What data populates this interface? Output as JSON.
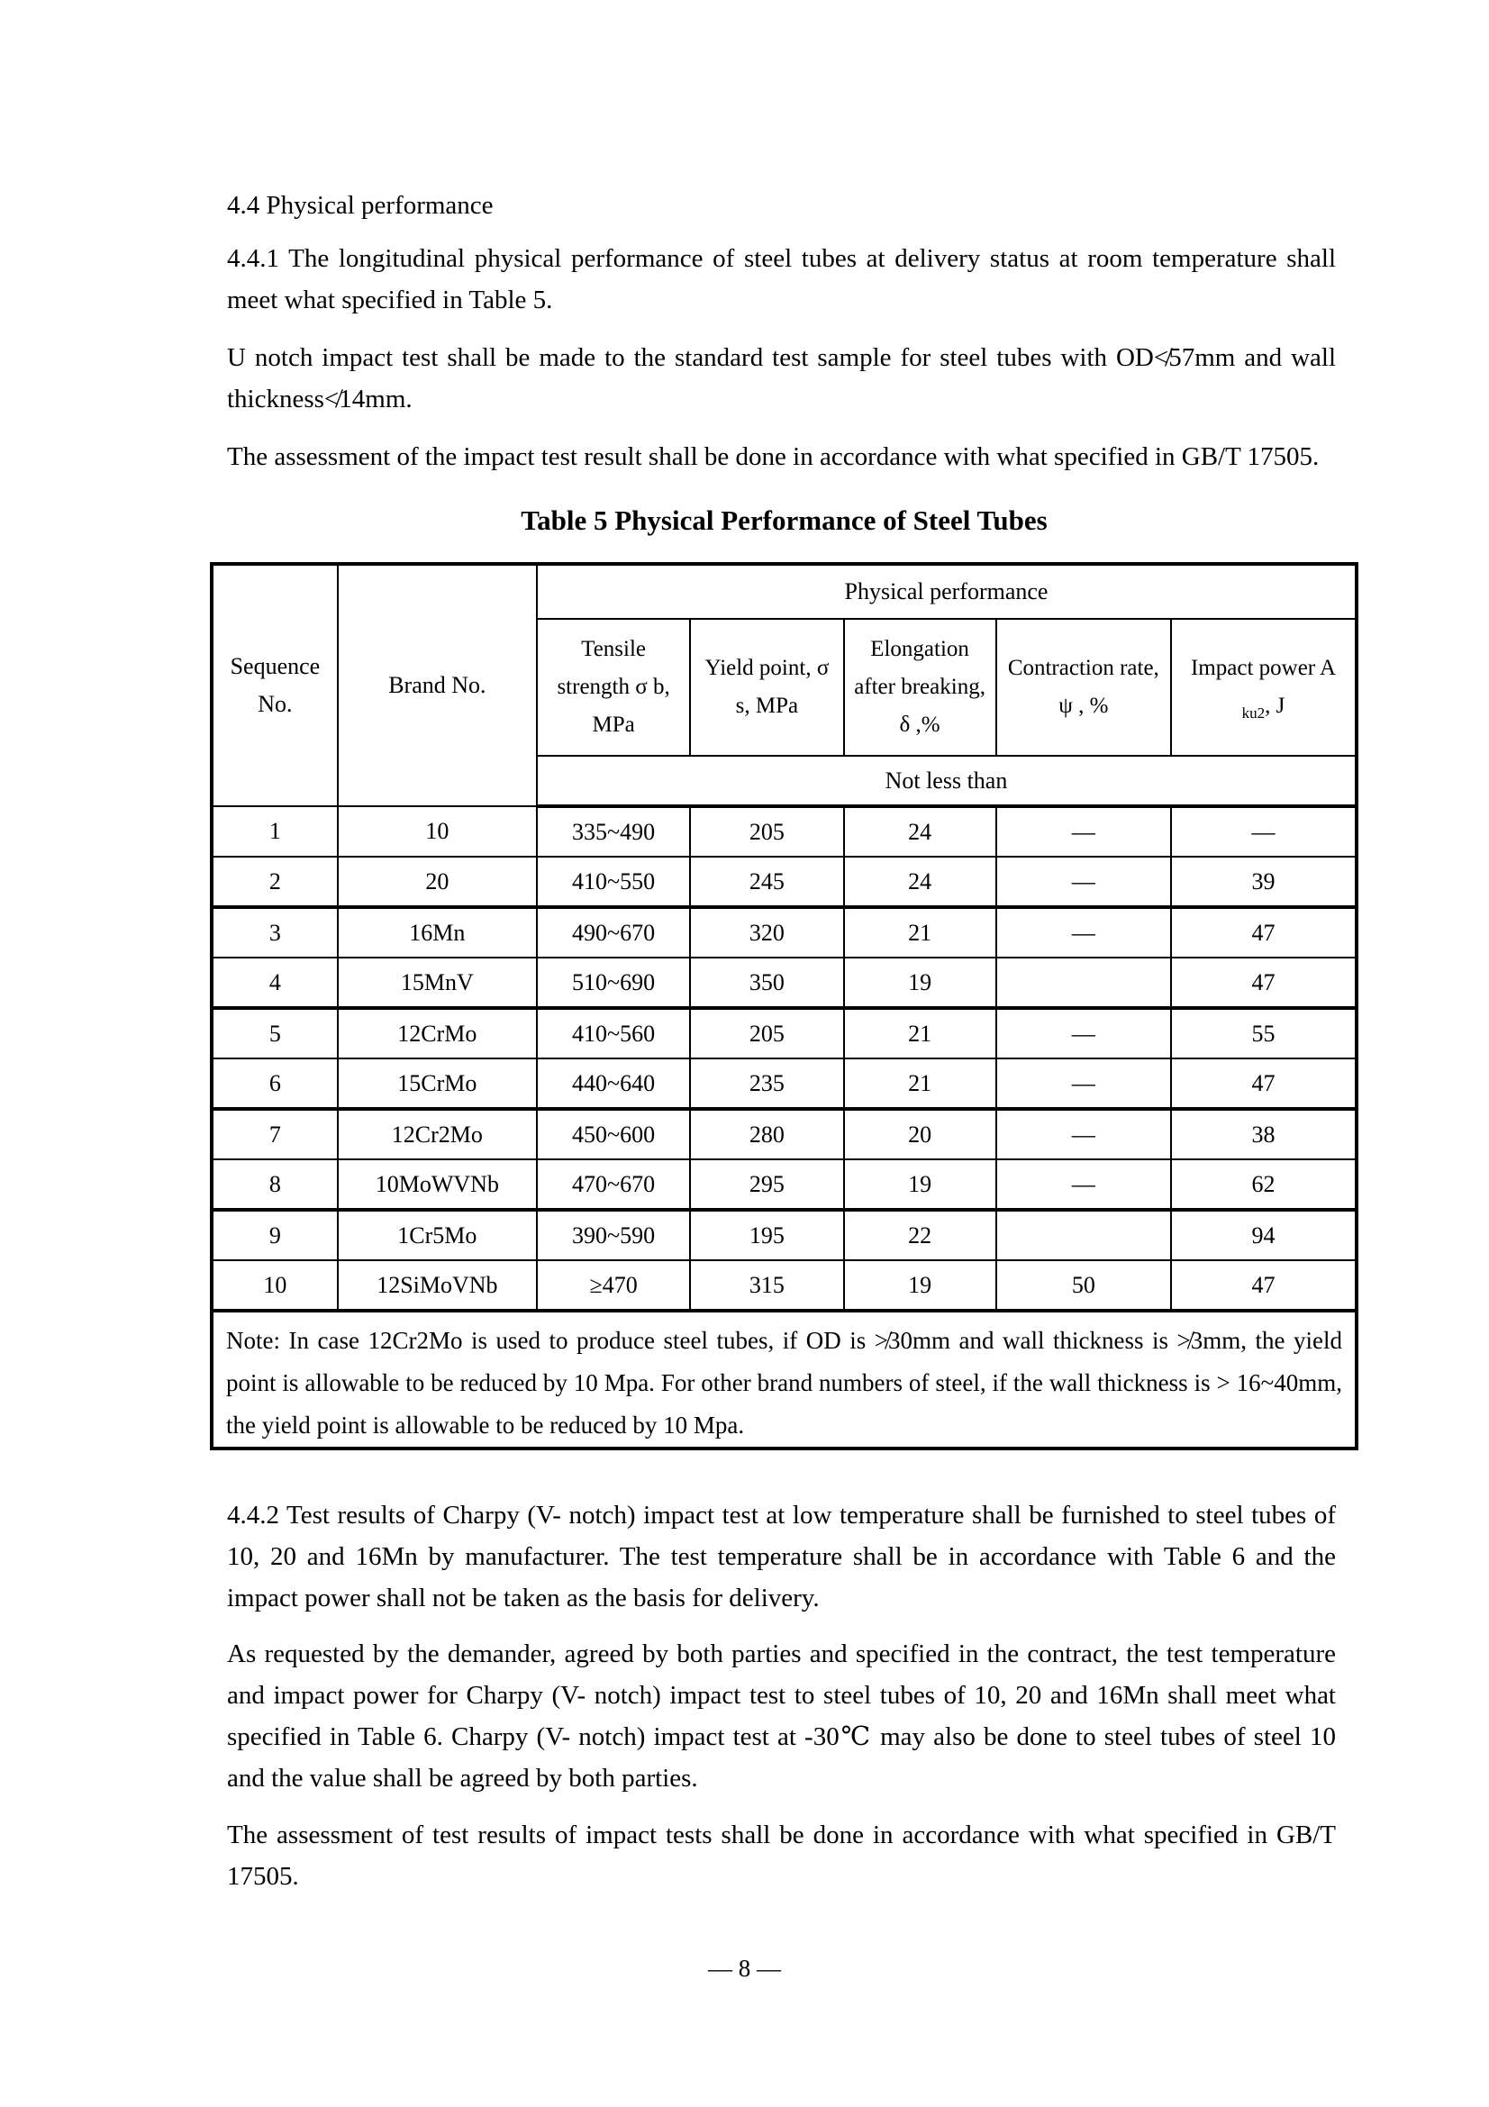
{
  "document": {
    "section_heading": "4.4  Physical performance",
    "paragraphs": {
      "p441": "4.4.1 The longitudinal physical performance of steel tubes at delivery status at room temperature shall meet what specified in Table 5.",
      "p_u_notch": "U notch impact test shall be made to the standard test sample for steel tubes with OD≮57mm and wall thickness≮14mm.",
      "p_assessment1": "The assessment of the impact test result shall be done in accordance with what specified in GB/T 17505.",
      "p442": "4.4.2  Test results of Charpy (V- notch) impact test at low temperature shall be furnished to steel tubes of 10, 20 and 16Mn by manufacturer. The test temperature shall be in accordance with Table 6 and the impact power shall not be taken as the basis for delivery.",
      "p_as_requested": "As requested by the demander, agreed by both parties and specified in the contract, the test temperature and impact power for Charpy (V- notch) impact test to steel tubes of 10, 20 and 16Mn shall meet what specified in Table 6. Charpy (V- notch) impact test at -30℃ may also be done to steel tubes of steel 10 and the value shall be agreed by both parties.",
      "p_assessment2": "The assessment of test results of impact tests shall be done in accordance with what specified in GB/T 17505."
    },
    "table_title": "Table 5    Physical Performance of Steel Tubes",
    "page_number": "— 8 —"
  },
  "table": {
    "header": {
      "sequence_no": "Sequence No.",
      "brand_no": "Brand No.",
      "group": "Physical performance",
      "tensile": "Tensile strength σ b, MPa",
      "yield": "Yield point, σ s, MPa",
      "elongation": "Elongation after breaking, δ ,%",
      "contraction": "Contraction rate, ψ , %",
      "impact_line1": "Impact power A",
      "impact_sub": "ku2",
      "impact_unit": ", J",
      "not_less_than": "Not less than"
    },
    "rows": [
      [
        "1",
        "10",
        "335~490",
        "205",
        "24",
        "—",
        "—"
      ],
      [
        "2",
        "20",
        "410~550",
        "245",
        "24",
        "—",
        "39"
      ],
      [
        "3",
        "16Mn",
        "490~670",
        "320",
        "21",
        "—",
        "47"
      ],
      [
        "4",
        "15MnV",
        "510~690",
        "350",
        "19",
        "",
        "47"
      ],
      [
        "5",
        "12CrMo",
        "410~560",
        "205",
        "21",
        "—",
        "55"
      ],
      [
        "6",
        "15CrMo",
        "440~640",
        "235",
        "21",
        "—",
        "47"
      ],
      [
        "7",
        "12Cr2Mo",
        "450~600",
        "280",
        "20",
        "—",
        "38"
      ],
      [
        "8",
        "10MoWVNb",
        "470~670",
        "295",
        "19",
        "—",
        "62"
      ],
      [
        "9",
        "1Cr5Mo",
        "390~590",
        "195",
        "22",
        "",
        "94"
      ],
      [
        "10",
        "12SiMoVNb",
        "≥470",
        "315",
        "19",
        "50",
        "47"
      ]
    ],
    "note": "Note: In case 12Cr2Mo is used to produce steel tubes, if OD is ≯30mm and wall thickness is ≯3mm, the yield point is allowable to be reduced by 10 Mpa. For other brand numbers of steel, if the wall thickness is > 16~40mm, the yield point is allowable to be reduced by 10 Mpa."
  }
}
